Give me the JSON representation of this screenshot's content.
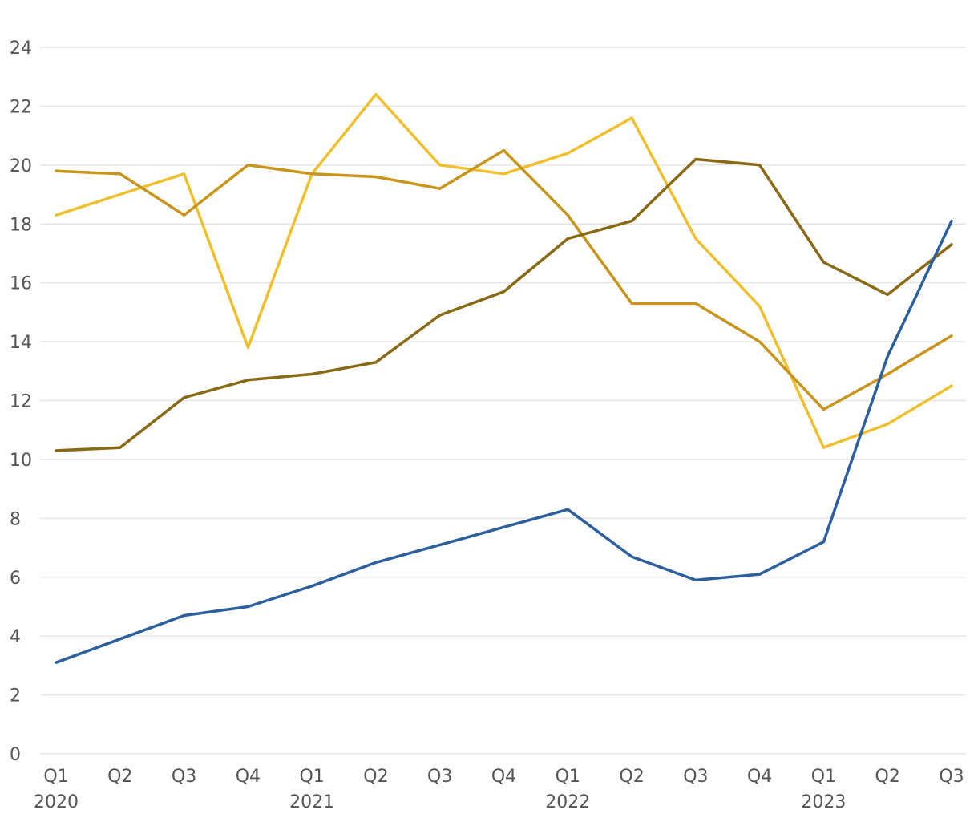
{
  "chart_data": {
    "type": "line",
    "title": "",
    "xlabel": "",
    "ylabel": "",
    "categories": [
      "Q1",
      "Q2",
      "Q3",
      "Q4",
      "Q1",
      "Q2",
      "Q3",
      "Q4",
      "Q1",
      "Q2",
      "Q3",
      "Q4",
      "Q1",
      "Q2",
      "Q3"
    ],
    "years": [
      {
        "label": "2020",
        "index": 0
      },
      {
        "label": "2021",
        "index": 4
      },
      {
        "label": "2022",
        "index": 8
      },
      {
        "label": "2023",
        "index": 12
      }
    ],
    "ylim": [
      0,
      24
    ],
    "yticks": [
      0,
      2,
      4,
      6,
      8,
      10,
      12,
      14,
      16,
      18,
      20,
      22,
      24
    ],
    "grid": true,
    "legend": "none",
    "series": [
      {
        "color": "#f0c02c",
        "values": [
          18.3,
          19.0,
          19.7,
          13.8,
          19.7,
          22.4,
          20.0,
          19.7,
          20.4,
          21.6,
          17.5,
          15.2,
          10.4,
          11.2,
          12.5
        ]
      },
      {
        "color": "#c8951a",
        "values": [
          19.8,
          19.7,
          18.3,
          20.0,
          19.7,
          19.6,
          19.2,
          20.5,
          18.3,
          15.3,
          15.3,
          14.0,
          11.7,
          12.9,
          14.2
        ]
      },
      {
        "color": "#8a6914",
        "values": [
          10.3,
          10.4,
          12.1,
          12.7,
          12.9,
          13.3,
          14.9,
          15.7,
          17.5,
          18.1,
          20.2,
          20.0,
          16.7,
          15.6,
          17.3
        ]
      },
      {
        "color": "#2b5f9e",
        "values": [
          3.1,
          3.9,
          4.7,
          5.0,
          5.7,
          6.5,
          7.1,
          7.7,
          8.3,
          6.7,
          5.9,
          6.1,
          7.2,
          13.5,
          18.1
        ]
      }
    ]
  }
}
